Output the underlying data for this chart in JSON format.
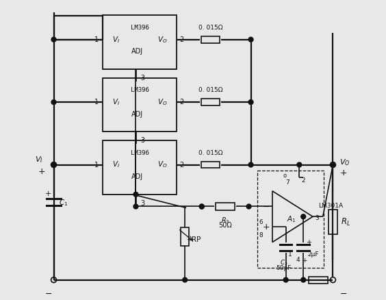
{
  "bg_color": "#e8e8e8",
  "line_color": "#111111",
  "res_val": "0. 015Ω",
  "r3_label": "R_3",
  "r3_val": "50Ω",
  "rp_label": "RP",
  "c1_label": "C_1",
  "c2_label": "C_2",
  "c2_val": "50pF",
  "c3_val": "2μF",
  "rl_label": "R_L",
  "lm301_label": "LM301A",
  "a1_label": "A_1",
  "vi_label": "V_I",
  "vo_label": "V_O"
}
